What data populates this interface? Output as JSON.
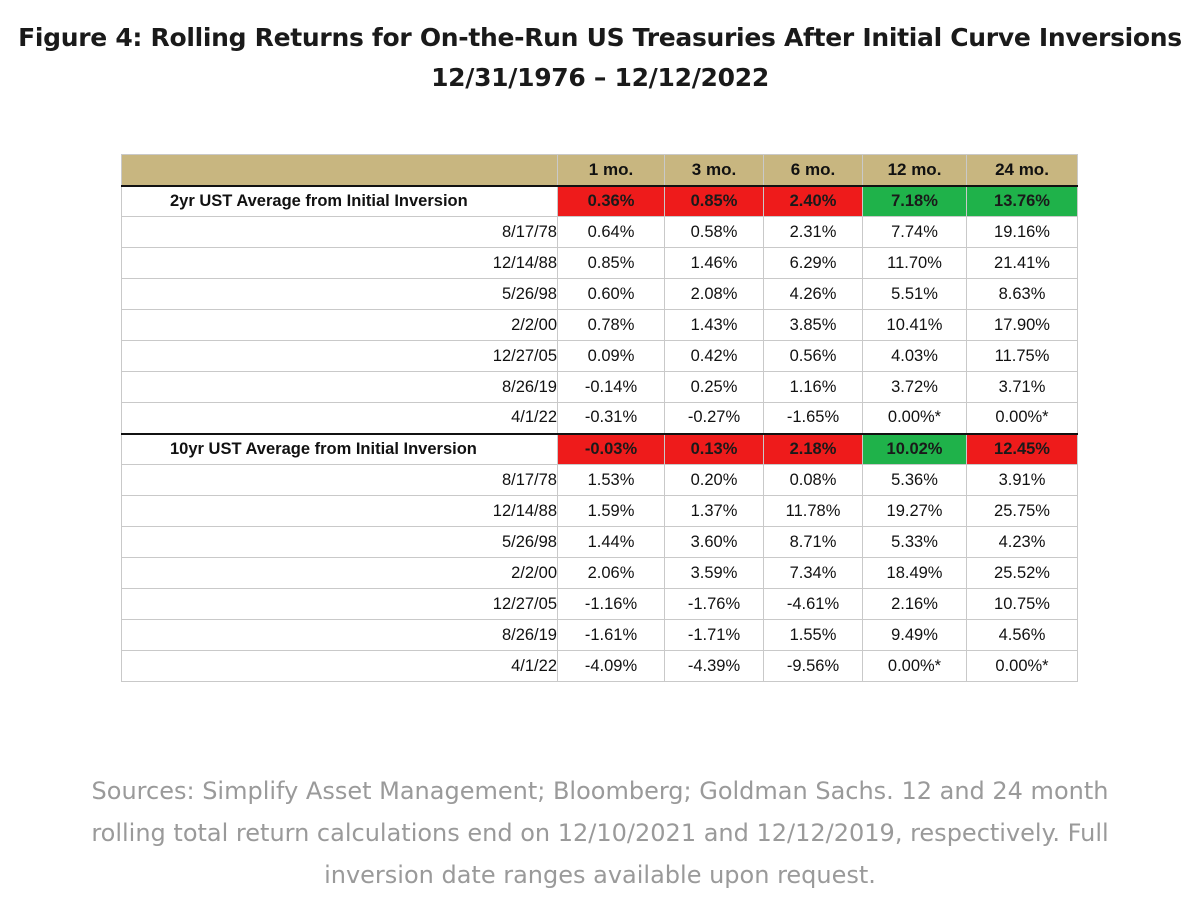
{
  "title": {
    "line1": "Figure 4:  Rolling Returns for On-the-Run US Treasuries After Initial Curve Inversions",
    "line2": "12/31/1976 – 12/12/2022"
  },
  "table": {
    "headers": [
      "1 mo.",
      "3 mo.",
      "6 mo.",
      "12 mo.",
      "24 mo."
    ],
    "sections": [
      {
        "label": "2yr UST Average from Initial Inversion",
        "averages": [
          "0.36%",
          "0.85%",
          "2.40%",
          "7.18%",
          "13.76%"
        ],
        "average_colors": [
          "red",
          "red",
          "red",
          "green",
          "green"
        ],
        "rows": [
          {
            "date": "8/17/78",
            "values": [
              "0.64%",
              "0.58%",
              "2.31%",
              "7.74%",
              "19.16%"
            ]
          },
          {
            "date": "12/14/88",
            "values": [
              "0.85%",
              "1.46%",
              "6.29%",
              "11.70%",
              "21.41%"
            ]
          },
          {
            "date": "5/26/98",
            "values": [
              "0.60%",
              "2.08%",
              "4.26%",
              "5.51%",
              "8.63%"
            ]
          },
          {
            "date": "2/2/00",
            "values": [
              "0.78%",
              "1.43%",
              "3.85%",
              "10.41%",
              "17.90%"
            ]
          },
          {
            "date": "12/27/05",
            "values": [
              "0.09%",
              "0.42%",
              "0.56%",
              "4.03%",
              "11.75%"
            ]
          },
          {
            "date": "8/26/19",
            "values": [
              "-0.14%",
              "0.25%",
              "1.16%",
              "3.72%",
              "3.71%"
            ]
          },
          {
            "date": "4/1/22",
            "values": [
              "-0.31%",
              "-0.27%",
              "-1.65%",
              "0.00%*",
              "0.00%*"
            ]
          }
        ]
      },
      {
        "label": "10yr UST Average from Initial Inversion",
        "averages": [
          "-0.03%",
          "0.13%",
          "2.18%",
          "10.02%",
          "12.45%"
        ],
        "average_colors": [
          "red",
          "red",
          "red",
          "green",
          "red"
        ],
        "rows": [
          {
            "date": "8/17/78",
            "values": [
              "1.53%",
              "0.20%",
              "0.08%",
              "5.36%",
              "3.91%"
            ]
          },
          {
            "date": "12/14/88",
            "values": [
              "1.59%",
              "1.37%",
              "11.78%",
              "19.27%",
              "25.75%"
            ]
          },
          {
            "date": "5/26/98",
            "values": [
              "1.44%",
              "3.60%",
              "8.71%",
              "5.33%",
              "4.23%"
            ]
          },
          {
            "date": "2/2/00",
            "values": [
              "2.06%",
              "3.59%",
              "7.34%",
              "18.49%",
              "25.52%"
            ]
          },
          {
            "date": "12/27/05",
            "values": [
              "-1.16%",
              "-1.76%",
              "-4.61%",
              "2.16%",
              "10.75%"
            ]
          },
          {
            "date": "8/26/19",
            "values": [
              "-1.61%",
              "-1.71%",
              "1.55%",
              "9.49%",
              "4.56%"
            ]
          },
          {
            "date": "4/1/22",
            "values": [
              "-4.09%",
              "-4.39%",
              "-9.56%",
              "0.00%*",
              "0.00%*"
            ]
          }
        ]
      }
    ]
  },
  "colors": {
    "header_bg": "#c8b680",
    "negative_avg": "#ee1b1b",
    "positive_avg": "#1fb24a"
  },
  "sources": {
    "line1": "Sources: Simplify Asset Management; Bloomberg; Goldman Sachs. 12 and 24 month",
    "line2": "rolling total return calculations end on 12/10/2021 and 12/12/2019, respectively. Full",
    "line3": "inversion date ranges available upon request."
  }
}
